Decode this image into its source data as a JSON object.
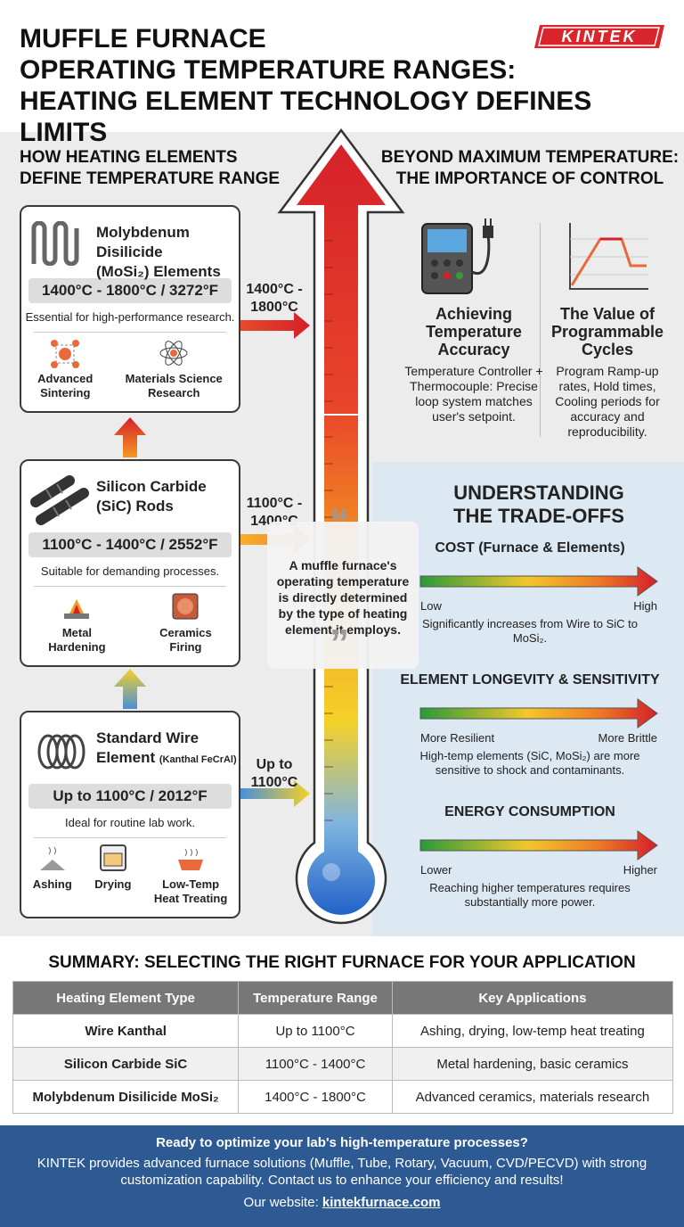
{
  "header": {
    "title": [
      "MUFFLE FURNACE",
      "OPERATING TEMPERATURE RANGES:",
      "HEATING ELEMENT TECHNOLOGY DEFINES LIMITS"
    ],
    "logo": "KINTEK"
  },
  "elements": {
    "heading": [
      "HOW HEATING ELEMENTS",
      "DEFINE TEMPERATURE RANGE"
    ],
    "cards": [
      {
        "name": [
          "Molybdenum Disilicide",
          "(MoSi₂) Elements"
        ],
        "range": "1400°C - 1800°C / 3272°F",
        "description": "Essential for high-performance research.",
        "applications": [
          [
            "Advanced",
            "Sintering"
          ],
          [
            "Materials Science",
            "Research"
          ]
        ]
      },
      {
        "name": [
          "Silicon Carbide",
          "(SiC) Rods"
        ],
        "range": "1100°C - 1400°C / 2552°F",
        "description": "Suitable for demanding processes.",
        "applications": [
          [
            "Metal",
            "Hardening"
          ],
          [
            "Ceramics",
            "Firing"
          ]
        ]
      },
      {
        "name": [
          "Standard Wire",
          "Element"
        ],
        "note": "(Kanthal FeCrAl)",
        "range": "Up to 1100°C / 2012°F",
        "description": "Ideal for routine lab work.",
        "applications": [
          [
            "Ashing"
          ],
          [
            "Drying"
          ],
          [
            "Low-Temp",
            "Heat Treating"
          ]
        ]
      }
    ]
  },
  "thermometer": {
    "labels": [
      [
        "1400°C -",
        "1800°C"
      ],
      [
        "1100°C -",
        "1400°C"
      ],
      [
        "Up to",
        "1100°C"
      ]
    ],
    "quote": "A muffle furnace's operating temperature is directly determined by the type of heating element it employs."
  },
  "control": {
    "heading": [
      "BEYOND MAXIMUM TEMPERATURE:",
      "THE IMPORTANCE OF CONTROL"
    ],
    "items": [
      {
        "title": [
          "Achieving",
          "Temperature",
          "Accuracy"
        ],
        "text": "Temperature Controller + Thermocouple: Precise loop system matches user's setpoint."
      },
      {
        "title": [
          "The Value of",
          "Programmable",
          "Cycles"
        ],
        "text": "Program Ramp-up rates, Hold times, Cooling periods for accuracy and reproducibility."
      }
    ]
  },
  "tradeoffs": {
    "heading": [
      "UNDERSTANDING",
      "THE TRADE-OFFS"
    ],
    "items": [
      {
        "title": "COST (Furnace & Elements)",
        "low": "Low",
        "high": "High",
        "note": "Significantly increases from Wire to SiC to MoSi₂."
      },
      {
        "title": "ELEMENT LONGEVITY & SENSITIVITY",
        "low": "More Resilient",
        "high": "More Brittle",
        "note": "High-temp elements (SiC, MoSi₂) are more sensitive to shock and contaminants."
      },
      {
        "title": "ENERGY CONSUMPTION",
        "low": "Lower",
        "high": "Higher",
        "note": "Reaching higher temperatures requires substantially more power."
      }
    ]
  },
  "summary": {
    "title": "SUMMARY: SELECTING THE RIGHT FURNACE FOR YOUR APPLICATION",
    "columns": [
      "Heating Element Type",
      "Temperature Range",
      "Key Applications"
    ],
    "rows": [
      [
        "Wire Kanthal",
        "Up to 1100°C",
        "Ashing, drying, low-temp heat treating"
      ],
      [
        "Silicon Carbide SiC",
        "1100°C - 1400°C",
        "Metal hardening, basic ceramics"
      ],
      [
        "Molybdenum Disilicide MoSi₂",
        "1400°C - 1800°C",
        "Advanced ceramics, materials research"
      ]
    ]
  },
  "footer": {
    "question": "Ready to optimize your lab's high-temperature processes?",
    "text": "KINTEK provides advanced furnace solutions (Muffle, Tube, Rotary, Vacuum, CVD/PECVD) with strong customization capability. Contact us to enhance your efficiency and results!",
    "website_label": "Our website:",
    "website": "kintekfurnace.com"
  }
}
